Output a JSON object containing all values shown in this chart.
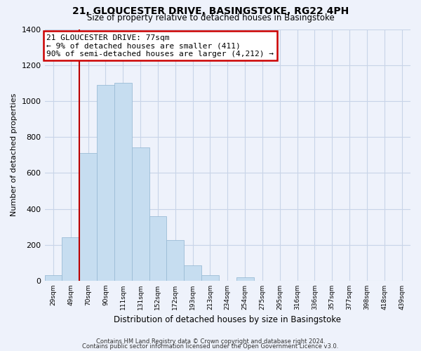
{
  "title": "21, GLOUCESTER DRIVE, BASINGSTOKE, RG22 4PH",
  "subtitle": "Size of property relative to detached houses in Basingstoke",
  "xlabel": "Distribution of detached houses by size in Basingstoke",
  "ylabel": "Number of detached properties",
  "bin_labels": [
    "29sqm",
    "49sqm",
    "70sqm",
    "90sqm",
    "111sqm",
    "131sqm",
    "152sqm",
    "172sqm",
    "193sqm",
    "213sqm",
    "234sqm",
    "254sqm",
    "275sqm",
    "295sqm",
    "316sqm",
    "336sqm",
    "357sqm",
    "377sqm",
    "398sqm",
    "418sqm",
    "439sqm"
  ],
  "bar_heights": [
    30,
    240,
    710,
    1090,
    1100,
    740,
    360,
    225,
    85,
    30,
    0,
    20,
    0,
    0,
    0,
    0,
    0,
    0,
    0,
    0,
    0
  ],
  "bar_color": "#c6ddf0",
  "bar_edge_color": "#9bbcd6",
  "ylim": [
    0,
    1400
  ],
  "yticks": [
    0,
    200,
    400,
    600,
    800,
    1000,
    1200,
    1400
  ],
  "annotation_line1": "21 GLOUCESTER DRIVE: 77sqm",
  "annotation_line2": "← 9% of detached houses are smaller (411)",
  "annotation_line3": "90% of semi-detached houses are larger (4,212) →",
  "footer1": "Contains HM Land Registry data © Crown copyright and database right 2024.",
  "footer2": "Contains public sector information licensed under the Open Government Licence v3.0.",
  "bg_color": "#eef2fb",
  "grid_color": "#c8d4e8",
  "annotation_box_color": "#ffffff",
  "annotation_box_edge": "#cc0000",
  "vline_color": "#bb0000",
  "vline_x_index": 1.5
}
